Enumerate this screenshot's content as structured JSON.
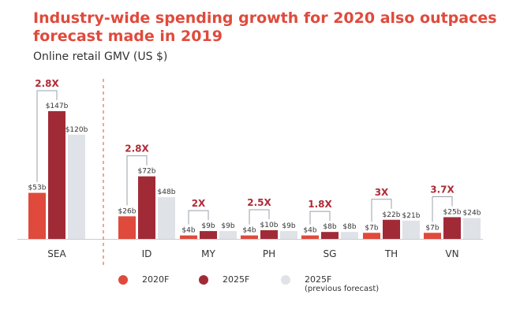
{
  "header": {
    "title_line1": "Industry-wide spending growth for 2020 also outpaces",
    "title_line2": "forecast made in 2019",
    "subtitle": "Online retail GMV (US $)"
  },
  "colors": {
    "c2020": "#e04a3c",
    "c2025": "#a02b37",
    "cprev": "#dfe2e7",
    "title": "#e04a3c",
    "multiplier": "#b02a36"
  },
  "legend": {
    "item1": "2020F",
    "item2": "2025F",
    "item3": "2025F",
    "item3_sub": "(previous forecast)"
  },
  "chart_data": {
    "type": "bar",
    "title": "Industry-wide spending growth for 2020 also outpaces forecast made in 2019",
    "subtitle": "Online retail GMV (US $)",
    "xlabel": "",
    "ylabel": "",
    "grid": false,
    "legend_position": "bottom",
    "categories": [
      "SEA",
      "ID",
      "MY",
      "PH",
      "SG",
      "TH",
      "VN"
    ],
    "series": [
      {
        "name": "2020F",
        "values": [
          53,
          26,
          4,
          4,
          4,
          7,
          7
        ],
        "labels": [
          "$53b",
          "$26b",
          "$4b",
          "$4b",
          "$4b",
          "$7b",
          "$7b"
        ]
      },
      {
        "name": "2025F",
        "values": [
          147,
          72,
          9,
          10,
          8,
          22,
          25
        ],
        "labels": [
          "$147b",
          "$72b",
          "$9b",
          "$10b",
          "$8b",
          "$22b",
          "$25b"
        ]
      },
      {
        "name": "2025F (previous forecast)",
        "values": [
          120,
          48,
          9,
          9,
          8,
          21,
          24
        ],
        "labels": [
          "$120b",
          "$48b",
          "$9b",
          "$9b",
          "$8b",
          "$21b",
          "$24b"
        ]
      }
    ],
    "multipliers": [
      "2.8X",
      "2.8X",
      "2X",
      "2.5X",
      "1.8X",
      "3X",
      "3.7X"
    ],
    "annotations": "Dashed divider separates SEA total from individual countries"
  }
}
